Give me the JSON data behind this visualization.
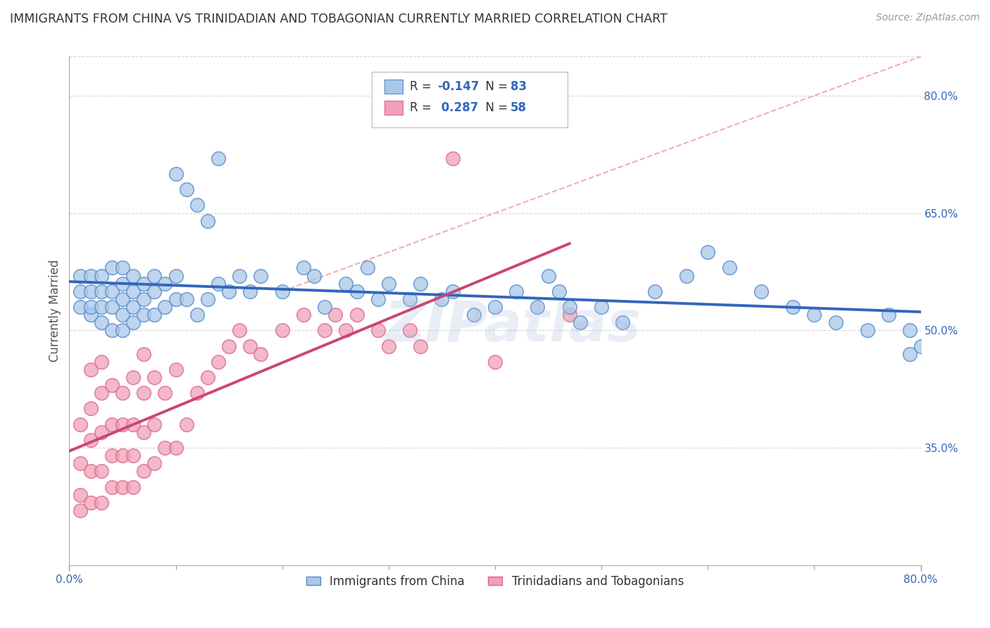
{
  "title": "IMMIGRANTS FROM CHINA VS TRINIDADIAN AND TOBAGONIAN CURRENTLY MARRIED CORRELATION CHART",
  "source": "Source: ZipAtlas.com",
  "ylabel": "Currently Married",
  "xlim": [
    0.0,
    0.8
  ],
  "ylim": [
    0.2,
    0.85
  ],
  "xtick_positions": [
    0.0,
    0.8
  ],
  "xtick_labels": [
    "0.0%",
    "80.0%"
  ],
  "ytick_right_labels": [
    "35.0%",
    "50.0%",
    "65.0%",
    "80.0%"
  ],
  "ytick_right_values": [
    0.35,
    0.5,
    0.65,
    0.8
  ],
  "series1_color": "#a8c8e8",
  "series1_edge": "#5588cc",
  "series2_color": "#f0a0b8",
  "series2_edge": "#dd6688",
  "series1_label": "Immigrants from China",
  "series2_label": "Trinidadians and Tobagonians",
  "series1_R": "-0.147",
  "series1_N": "83",
  "series2_R": "0.287",
  "series2_N": "58",
  "trend1_color": "#3366bb",
  "trend2_color": "#cc4477",
  "diag_color": "#dd8899",
  "legend_text_color": "#3366bb",
  "watermark": "ZIPatlas",
  "background_color": "#ffffff",
  "grid_color": "#cccccc",
  "series1_x": [
    0.01,
    0.01,
    0.01,
    0.02,
    0.02,
    0.02,
    0.02,
    0.03,
    0.03,
    0.03,
    0.03,
    0.04,
    0.04,
    0.04,
    0.04,
    0.05,
    0.05,
    0.05,
    0.05,
    0.05,
    0.06,
    0.06,
    0.06,
    0.06,
    0.07,
    0.07,
    0.07,
    0.08,
    0.08,
    0.08,
    0.09,
    0.09,
    0.1,
    0.1,
    0.1,
    0.11,
    0.11,
    0.12,
    0.12,
    0.13,
    0.13,
    0.14,
    0.14,
    0.15,
    0.16,
    0.17,
    0.18,
    0.2,
    0.22,
    0.23,
    0.24,
    0.26,
    0.27,
    0.28,
    0.29,
    0.3,
    0.32,
    0.33,
    0.35,
    0.36,
    0.38,
    0.4,
    0.42,
    0.44,
    0.45,
    0.46,
    0.47,
    0.48,
    0.5,
    0.52,
    0.55,
    0.58,
    0.6,
    0.62,
    0.65,
    0.68,
    0.7,
    0.72,
    0.75,
    0.77,
    0.79,
    0.79,
    0.8
  ],
  "series1_y": [
    0.53,
    0.55,
    0.57,
    0.52,
    0.53,
    0.55,
    0.57,
    0.51,
    0.53,
    0.55,
    0.57,
    0.5,
    0.53,
    0.55,
    0.58,
    0.5,
    0.52,
    0.54,
    0.56,
    0.58,
    0.51,
    0.53,
    0.55,
    0.57,
    0.52,
    0.54,
    0.56,
    0.52,
    0.55,
    0.57,
    0.53,
    0.56,
    0.54,
    0.57,
    0.7,
    0.54,
    0.68,
    0.52,
    0.66,
    0.54,
    0.64,
    0.56,
    0.72,
    0.55,
    0.57,
    0.55,
    0.57,
    0.55,
    0.58,
    0.57,
    0.53,
    0.56,
    0.55,
    0.58,
    0.54,
    0.56,
    0.54,
    0.56,
    0.54,
    0.55,
    0.52,
    0.53,
    0.55,
    0.53,
    0.57,
    0.55,
    0.53,
    0.51,
    0.53,
    0.51,
    0.55,
    0.57,
    0.6,
    0.58,
    0.55,
    0.53,
    0.52,
    0.51,
    0.5,
    0.52,
    0.47,
    0.5,
    0.48
  ],
  "series2_x": [
    0.01,
    0.01,
    0.01,
    0.01,
    0.02,
    0.02,
    0.02,
    0.02,
    0.02,
    0.03,
    0.03,
    0.03,
    0.03,
    0.03,
    0.04,
    0.04,
    0.04,
    0.04,
    0.05,
    0.05,
    0.05,
    0.05,
    0.06,
    0.06,
    0.06,
    0.06,
    0.07,
    0.07,
    0.07,
    0.07,
    0.08,
    0.08,
    0.08,
    0.09,
    0.09,
    0.1,
    0.1,
    0.11,
    0.12,
    0.13,
    0.14,
    0.15,
    0.16,
    0.17,
    0.18,
    0.2,
    0.22,
    0.24,
    0.25,
    0.26,
    0.27,
    0.29,
    0.3,
    0.32,
    0.33,
    0.36,
    0.4,
    0.47
  ],
  "series2_y": [
    0.27,
    0.29,
    0.33,
    0.38,
    0.28,
    0.32,
    0.36,
    0.4,
    0.45,
    0.28,
    0.32,
    0.37,
    0.42,
    0.46,
    0.3,
    0.34,
    0.38,
    0.43,
    0.3,
    0.34,
    0.38,
    0.42,
    0.3,
    0.34,
    0.38,
    0.44,
    0.32,
    0.37,
    0.42,
    0.47,
    0.33,
    0.38,
    0.44,
    0.35,
    0.42,
    0.35,
    0.45,
    0.38,
    0.42,
    0.44,
    0.46,
    0.48,
    0.5,
    0.48,
    0.47,
    0.5,
    0.52,
    0.5,
    0.52,
    0.5,
    0.52,
    0.5,
    0.48,
    0.5,
    0.48,
    0.72,
    0.46,
    0.52
  ]
}
